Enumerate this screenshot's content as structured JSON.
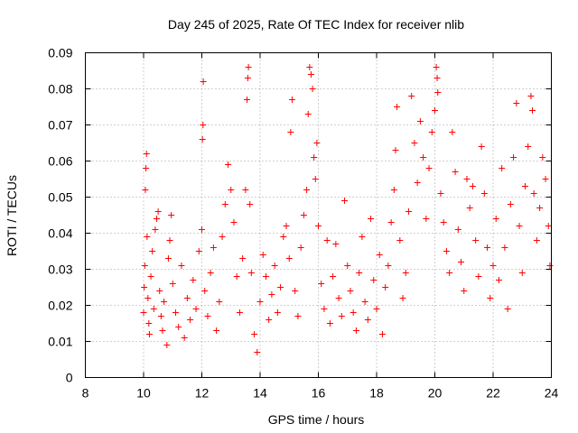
{
  "chart_data": {
    "type": "scatter",
    "title": "Day 245 of 2025, Rate Of TEC Index for receiver nlib",
    "xlabel": "GPS time / hours",
    "ylabel": "ROTI / TECUs",
    "xlim": [
      8,
      24
    ],
    "ylim": [
      0,
      0.09
    ],
    "xticks": [
      8,
      10,
      12,
      14,
      16,
      18,
      20,
      22,
      24
    ],
    "xtick_labels": [
      "8",
      "10",
      "12",
      "14",
      "16",
      "18",
      "20",
      "22",
      "24"
    ],
    "yticks": [
      0,
      0.01,
      0.02,
      0.03,
      0.04,
      0.05,
      0.06,
      0.07,
      0.08,
      0.09
    ],
    "ytick_labels": [
      "0",
      "0.01",
      "0.02",
      "0.03",
      "0.04",
      "0.05",
      "0.06",
      "0.07",
      "0.08",
      "0.09"
    ],
    "grid": true,
    "marker": "+",
    "color": "#ff0000",
    "series": [
      {
        "name": "ROTI",
        "points": [
          [
            10.0,
            0.018
          ],
          [
            10.02,
            0.025
          ],
          [
            10.04,
            0.031
          ],
          [
            10.06,
            0.052
          ],
          [
            10.08,
            0.058
          ],
          [
            10.1,
            0.062
          ],
          [
            10.12,
            0.039
          ],
          [
            10.15,
            0.022
          ],
          [
            10.18,
            0.015
          ],
          [
            10.2,
            0.012
          ],
          [
            10.25,
            0.028
          ],
          [
            10.3,
            0.035
          ],
          [
            10.35,
            0.019
          ],
          [
            10.4,
            0.041
          ],
          [
            10.45,
            0.044
          ],
          [
            10.5,
            0.046
          ],
          [
            10.55,
            0.024
          ],
          [
            10.6,
            0.017
          ],
          [
            10.65,
            0.013
          ],
          [
            10.7,
            0.021
          ],
          [
            10.8,
            0.009
          ],
          [
            10.85,
            0.033
          ],
          [
            10.9,
            0.038
          ],
          [
            10.95,
            0.045
          ],
          [
            11.0,
            0.026
          ],
          [
            11.1,
            0.018
          ],
          [
            11.2,
            0.014
          ],
          [
            11.3,
            0.031
          ],
          [
            11.4,
            0.011
          ],
          [
            11.5,
            0.022
          ],
          [
            11.6,
            0.016
          ],
          [
            11.7,
            0.027
          ],
          [
            11.8,
            0.019
          ],
          [
            11.9,
            0.035
          ],
          [
            12.0,
            0.041
          ],
          [
            12.02,
            0.066
          ],
          [
            12.04,
            0.07
          ],
          [
            12.05,
            0.082
          ],
          [
            12.1,
            0.024
          ],
          [
            12.2,
            0.017
          ],
          [
            12.3,
            0.029
          ],
          [
            12.4,
            0.036
          ],
          [
            12.5,
            0.013
          ],
          [
            12.6,
            0.021
          ],
          [
            12.7,
            0.039
          ],
          [
            12.8,
            0.048
          ],
          [
            12.9,
            0.059
          ],
          [
            13.0,
            0.052
          ],
          [
            13.1,
            0.043
          ],
          [
            13.2,
            0.028
          ],
          [
            13.3,
            0.018
          ],
          [
            13.4,
            0.033
          ],
          [
            13.5,
            0.052
          ],
          [
            13.55,
            0.077
          ],
          [
            13.58,
            0.083
          ],
          [
            13.6,
            0.086
          ],
          [
            13.65,
            0.048
          ],
          [
            13.7,
            0.029
          ],
          [
            13.8,
            0.012
          ],
          [
            13.9,
            0.007
          ],
          [
            14.0,
            0.021
          ],
          [
            14.1,
            0.034
          ],
          [
            14.2,
            0.028
          ],
          [
            14.3,
            0.016
          ],
          [
            14.4,
            0.023
          ],
          [
            14.5,
            0.031
          ],
          [
            14.6,
            0.018
          ],
          [
            14.7,
            0.025
          ],
          [
            14.8,
            0.039
          ],
          [
            14.9,
            0.042
          ],
          [
            15.0,
            0.033
          ],
          [
            15.05,
            0.068
          ],
          [
            15.1,
            0.077
          ],
          [
            15.2,
            0.024
          ],
          [
            15.3,
            0.017
          ],
          [
            15.4,
            0.036
          ],
          [
            15.5,
            0.045
          ],
          [
            15.6,
            0.052
          ],
          [
            15.65,
            0.073
          ],
          [
            15.7,
            0.086
          ],
          [
            15.75,
            0.084
          ],
          [
            15.8,
            0.08
          ],
          [
            15.85,
            0.061
          ],
          [
            15.9,
            0.055
          ],
          [
            15.95,
            0.065
          ],
          [
            16.0,
            0.042
          ],
          [
            16.1,
            0.026
          ],
          [
            16.2,
            0.019
          ],
          [
            16.3,
            0.038
          ],
          [
            16.4,
            0.015
          ],
          [
            16.5,
            0.028
          ],
          [
            16.6,
            0.037
          ],
          [
            16.7,
            0.022
          ],
          [
            16.8,
            0.017
          ],
          [
            16.9,
            0.049
          ],
          [
            17.0,
            0.031
          ],
          [
            17.1,
            0.024
          ],
          [
            17.2,
            0.018
          ],
          [
            17.3,
            0.013
          ],
          [
            17.4,
            0.029
          ],
          [
            17.5,
            0.039
          ],
          [
            17.6,
            0.021
          ],
          [
            17.7,
            0.016
          ],
          [
            17.8,
            0.044
          ],
          [
            17.9,
            0.027
          ],
          [
            18.0,
            0.019
          ],
          [
            18.1,
            0.034
          ],
          [
            18.2,
            0.012
          ],
          [
            18.3,
            0.025
          ],
          [
            18.4,
            0.031
          ],
          [
            18.5,
            0.043
          ],
          [
            18.6,
            0.052
          ],
          [
            18.65,
            0.063
          ],
          [
            18.7,
            0.075
          ],
          [
            18.8,
            0.038
          ],
          [
            18.9,
            0.022
          ],
          [
            19.0,
            0.029
          ],
          [
            19.1,
            0.046
          ],
          [
            19.2,
            0.078
          ],
          [
            19.3,
            0.065
          ],
          [
            19.4,
            0.054
          ],
          [
            19.5,
            0.071
          ],
          [
            19.6,
            0.061
          ],
          [
            19.7,
            0.044
          ],
          [
            19.8,
            0.058
          ],
          [
            19.9,
            0.068
          ],
          [
            20.0,
            0.074
          ],
          [
            20.05,
            0.086
          ],
          [
            20.08,
            0.083
          ],
          [
            20.1,
            0.079
          ],
          [
            20.2,
            0.051
          ],
          [
            20.3,
            0.043
          ],
          [
            20.4,
            0.035
          ],
          [
            20.5,
            0.029
          ],
          [
            20.6,
            0.068
          ],
          [
            20.7,
            0.057
          ],
          [
            20.8,
            0.041
          ],
          [
            20.9,
            0.032
          ],
          [
            21.0,
            0.024
          ],
          [
            21.1,
            0.055
          ],
          [
            21.2,
            0.047
          ],
          [
            21.3,
            0.053
          ],
          [
            21.4,
            0.038
          ],
          [
            21.5,
            0.028
          ],
          [
            21.6,
            0.064
          ],
          [
            21.7,
            0.051
          ],
          [
            21.8,
            0.036
          ],
          [
            21.9,
            0.022
          ],
          [
            22.0,
            0.031
          ],
          [
            22.1,
            0.044
          ],
          [
            22.2,
            0.027
          ],
          [
            22.3,
            0.058
          ],
          [
            22.4,
            0.036
          ],
          [
            22.5,
            0.019
          ],
          [
            22.6,
            0.048
          ],
          [
            22.7,
            0.061
          ],
          [
            22.8,
            0.076
          ],
          [
            22.9,
            0.042
          ],
          [
            23.0,
            0.029
          ],
          [
            23.1,
            0.053
          ],
          [
            23.2,
            0.064
          ],
          [
            23.3,
            0.078
          ],
          [
            23.35,
            0.074
          ],
          [
            23.4,
            0.051
          ],
          [
            23.5,
            0.038
          ],
          [
            23.6,
            0.047
          ],
          [
            23.7,
            0.061
          ],
          [
            23.8,
            0.055
          ],
          [
            23.9,
            0.042
          ],
          [
            23.95,
            0.031
          ]
        ]
      }
    ]
  }
}
